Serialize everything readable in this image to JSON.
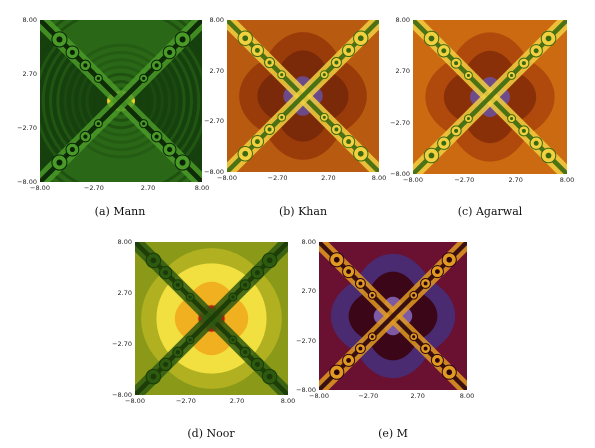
{
  "figure": {
    "panels": [
      {
        "id": "a",
        "label": "(a)",
        "name": "Mann",
        "palette": "green",
        "xticks": [
          "−8.00",
          "−2.70",
          "2.70",
          "8.00"
        ],
        "yticks": [
          "8.00",
          "2.70",
          "−2.70",
          "−8.00"
        ]
      },
      {
        "id": "b",
        "label": "(b)",
        "name": "Khan",
        "palette": "orange",
        "xticks": [
          "−8.00",
          "−2.70",
          "2.70",
          "8.00"
        ],
        "yticks": [
          "8.00",
          "2.70",
          "−2.70",
          "−8.00"
        ]
      },
      {
        "id": "c",
        "label": "(c)",
        "name": "Agarwal",
        "palette": "orange-light",
        "xticks": [
          "−8.00",
          "−2.70",
          "2.70",
          "8.00"
        ],
        "yticks": [
          "8.00",
          "2.70",
          "−2.70",
          "−8.00"
        ]
      },
      {
        "id": "d",
        "label": "(d)",
        "name": "Noor",
        "palette": "olive",
        "xticks": [
          "−8.00",
          "−2.70",
          "2.70",
          "8.00"
        ],
        "yticks": [
          "8.00",
          "2.70",
          "−2.70",
          "−8.00"
        ]
      },
      {
        "id": "e",
        "label": "(e)",
        "name": "M",
        "palette": "maroon",
        "xticks": [
          "−8.00",
          "−2.70",
          "2.70",
          "8.00"
        ],
        "yticks": [
          "8.00",
          "2.70",
          "−2.70",
          "−8.00"
        ]
      }
    ]
  },
  "palettes": {
    "green": [
      "#0d2e08",
      "#16400d",
      "#1f5212",
      "#2a6817",
      "#35801c",
      "#1a4a0e"
    ],
    "orange": [
      "#5a1208",
      "#7a2a08",
      "#9a3c0a",
      "#b85a10",
      "#d8a020",
      "#f0d040"
    ],
    "orange-light": [
      "#5a1208",
      "#8a3008",
      "#b04a0c",
      "#cc6a12",
      "#e0a020",
      "#f4dc50"
    ],
    "olive": [
      "#6a7a10",
      "#8a9a18",
      "#b0b020",
      "#d0c828",
      "#e8d830",
      "#f2e040"
    ],
    "maroon": [
      "#3a0618",
      "#520a20",
      "#6a1030",
      "#4a2a70",
      "#6a4aa0",
      "#8a6ac0"
    ]
  }
}
